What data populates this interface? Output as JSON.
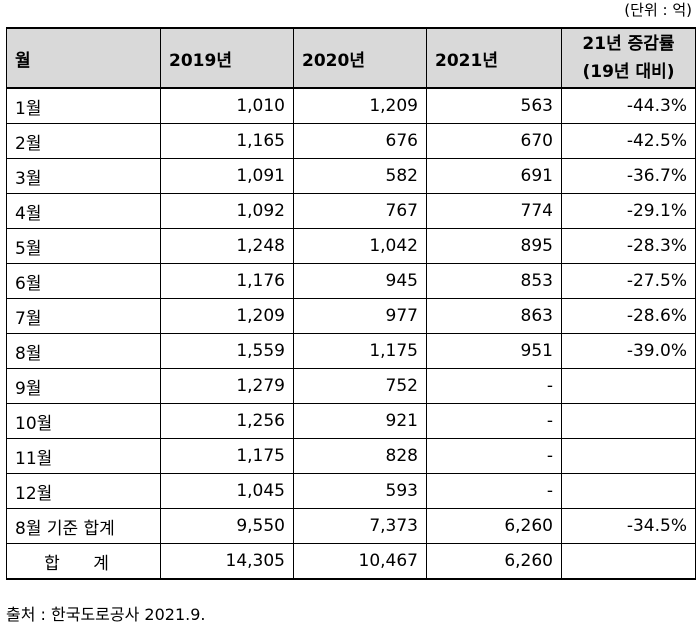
{
  "unit_note": "(단위 : 억)",
  "table": {
    "headers": {
      "month": "월",
      "y2019": "2019년",
      "y2020": "2020년",
      "y2021": "2021년",
      "rate_line1": "21년 증감률",
      "rate_line2": "(19년 대비)"
    },
    "rows": [
      {
        "month": "1월",
        "y2019": "1,010",
        "y2020": "1,209",
        "y2021": "563",
        "rate": "-44.3%"
      },
      {
        "month": "2월",
        "y2019": "1,165",
        "y2020": "676",
        "y2021": "670",
        "rate": "-42.5%"
      },
      {
        "month": "3월",
        "y2019": "1,091",
        "y2020": "582",
        "y2021": "691",
        "rate": "-36.7%"
      },
      {
        "month": "4월",
        "y2019": "1,092",
        "y2020": "767",
        "y2021": "774",
        "rate": "-29.1%"
      },
      {
        "month": "5월",
        "y2019": "1,248",
        "y2020": "1,042",
        "y2021": "895",
        "rate": "-28.3%"
      },
      {
        "month": "6월",
        "y2019": "1,176",
        "y2020": "945",
        "y2021": "853",
        "rate": "-27.5%"
      },
      {
        "month": "7월",
        "y2019": "1,209",
        "y2020": "977",
        "y2021": "863",
        "rate": "-28.6%"
      },
      {
        "month": "8월",
        "y2019": "1,559",
        "y2020": "1,175",
        "y2021": "951",
        "rate": "-39.0%"
      },
      {
        "month": "9월",
        "y2019": "1,279",
        "y2020": "752",
        "y2021": "-",
        "rate": ""
      },
      {
        "month": "10월",
        "y2019": "1,256",
        "y2020": "921",
        "y2021": "-",
        "rate": ""
      },
      {
        "month": "11월",
        "y2019": "1,175",
        "y2020": "828",
        "y2021": "-",
        "rate": ""
      },
      {
        "month": "12월",
        "y2019": "1,045",
        "y2020": "593",
        "y2021": "-",
        "rate": ""
      },
      {
        "month": "8월 기준 합계",
        "y2019": "9,550",
        "y2020": "7,373",
        "y2021": "6,260",
        "rate": "-34.5%"
      }
    ],
    "total": {
      "label": "합 계",
      "y2019": "14,305",
      "y2020": "10,467",
      "y2021": "6,260",
      "rate": ""
    }
  },
  "source": "출처 : 한국도로공사 2021.9."
}
